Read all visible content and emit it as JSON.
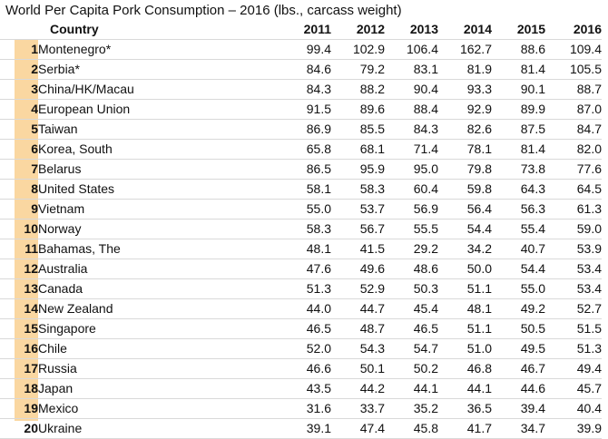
{
  "title": "World Per Capita Pork Consumption – 2016 (lbs., carcass weight)",
  "headers": {
    "country": "Country",
    "years": [
      "2011",
      "2012",
      "2013",
      "2014",
      "2015",
      "2016"
    ]
  },
  "rows": [
    {
      "rank": "1",
      "country": "Montenegro*",
      "values": [
        "99.4",
        "102.9",
        "106.4",
        "162.7",
        "88.6",
        "109.4"
      ]
    },
    {
      "rank": "2",
      "country": "Serbia*",
      "values": [
        "84.6",
        "79.2",
        "83.1",
        "81.9",
        "81.4",
        "105.5"
      ]
    },
    {
      "rank": "3",
      "country": "China/HK/Macau",
      "values": [
        "84.3",
        "88.2",
        "90.4",
        "93.3",
        "90.1",
        "88.7"
      ]
    },
    {
      "rank": "4",
      "country": "European Union",
      "values": [
        "91.5",
        "89.6",
        "88.4",
        "92.9",
        "89.9",
        "87.0"
      ]
    },
    {
      "rank": "5",
      "country": "Taiwan",
      "values": [
        "86.9",
        "85.5",
        "84.3",
        "82.6",
        "87.5",
        "84.7"
      ]
    },
    {
      "rank": "6",
      "country": "Korea, South",
      "values": [
        "65.8",
        "68.1",
        "71.4",
        "78.1",
        "81.4",
        "82.0"
      ]
    },
    {
      "rank": "7",
      "country": "Belarus",
      "values": [
        "86.5",
        "95.9",
        "95.0",
        "79.8",
        "73.8",
        "77.6"
      ]
    },
    {
      "rank": "8",
      "country": "United States",
      "values": [
        "58.1",
        "58.3",
        "60.4",
        "59.8",
        "64.3",
        "64.5"
      ]
    },
    {
      "rank": "9",
      "country": "Vietnam",
      "values": [
        "55.0",
        "53.7",
        "56.9",
        "56.4",
        "56.3",
        "61.3"
      ]
    },
    {
      "rank": "10",
      "country": "Norway",
      "values": [
        "58.3",
        "56.7",
        "55.5",
        "54.4",
        "55.4",
        "59.0"
      ]
    },
    {
      "rank": "11",
      "country": "Bahamas, The",
      "values": [
        "48.1",
        "41.5",
        "29.2",
        "34.2",
        "40.7",
        "53.9"
      ]
    },
    {
      "rank": "12",
      "country": "Australia",
      "values": [
        "47.6",
        "49.6",
        "48.6",
        "50.0",
        "54.4",
        "53.4"
      ]
    },
    {
      "rank": "13",
      "country": "Canada",
      "values": [
        "51.3",
        "52.9",
        "50.3",
        "51.1",
        "55.0",
        "53.4"
      ]
    },
    {
      "rank": "14",
      "country": "New Zealand",
      "values": [
        "44.0",
        "44.7",
        "45.4",
        "48.1",
        "49.2",
        "52.7"
      ]
    },
    {
      "rank": "15",
      "country": "Singapore",
      "values": [
        "46.5",
        "48.7",
        "46.5",
        "51.1",
        "50.5",
        "51.5"
      ]
    },
    {
      "rank": "16",
      "country": "Chile",
      "values": [
        "52.0",
        "54.3",
        "54.7",
        "51.0",
        "49.5",
        "51.3"
      ]
    },
    {
      "rank": "17",
      "country": "Russia",
      "values": [
        "46.6",
        "50.1",
        "50.2",
        "46.8",
        "46.7",
        "49.4"
      ]
    },
    {
      "rank": "18",
      "country": "Japan",
      "values": [
        "43.5",
        "44.2",
        "44.1",
        "44.1",
        "44.6",
        "45.7"
      ]
    },
    {
      "rank": "19",
      "country": "Mexico",
      "values": [
        "31.6",
        "33.7",
        "35.2",
        "36.5",
        "39.4",
        "40.4"
      ]
    },
    {
      "rank": "20",
      "country": "Ukraine",
      "values": [
        "39.1",
        "47.4",
        "45.8",
        "41.7",
        "34.7",
        "39.9"
      ]
    }
  ]
}
